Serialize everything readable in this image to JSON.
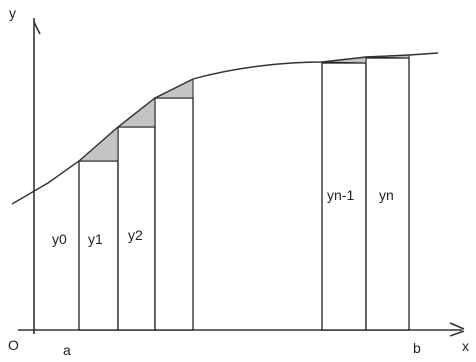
{
  "axes": {
    "y_label": "y",
    "x_label": "x",
    "origin_label": "O"
  },
  "bounds": {
    "a_label": "a",
    "b_label": "b"
  },
  "strips": {
    "left": [
      "y0",
      "y1",
      "y2"
    ],
    "right": [
      "yn-1",
      "yn"
    ]
  },
  "colors": {
    "line": "#333333",
    "shade": "#c4c4c4",
    "background": "#ffffff"
  }
}
